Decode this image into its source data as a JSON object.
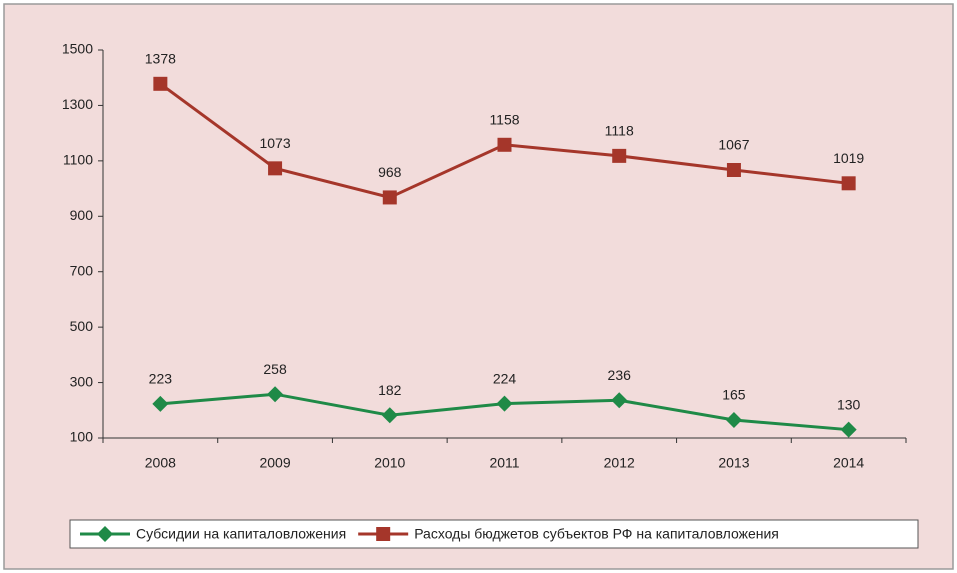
{
  "chart_data": {
    "type": "line",
    "categories": [
      "2008",
      "2009",
      "2010",
      "2011",
      "2012",
      "2013",
      "2014"
    ],
    "series": [
      {
        "name": "Субсидии на капиталовложения",
        "color": "#1f8a47",
        "marker": "diamond",
        "values": [
          223,
          258,
          182,
          224,
          236,
          165,
          130
        ]
      },
      {
        "name": "Расходы бюджетов субъектов РФ на капиталовложения",
        "color": "#a5362a",
        "marker": "square",
        "values": [
          1378,
          1073,
          968,
          1158,
          1118,
          1067,
          1019
        ]
      }
    ],
    "ylim": [
      100,
      1500
    ],
    "yticks": [
      100,
      300,
      500,
      700,
      900,
      1100,
      1300,
      1500
    ],
    "grid": false,
    "legend": "bottom"
  }
}
